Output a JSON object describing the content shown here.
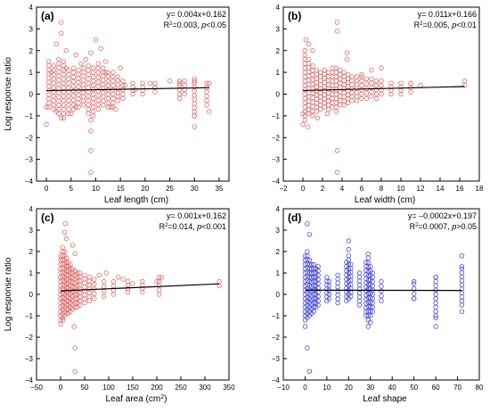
{
  "figure": {
    "panels": [
      "a",
      "b",
      "c",
      "d"
    ]
  },
  "chart_data": [
    {
      "type": "scatter",
      "panel_label": "(a)",
      "xlabel": "Leaf  length (cm)",
      "ylabel": "Log response ratio",
      "xlim": [
        -2,
        37
      ],
      "ylim": [
        -4,
        4
      ],
      "xticks": [
        0,
        5,
        10,
        15,
        20,
        25,
        30,
        35
      ],
      "yticks": [
        -4,
        -3,
        -2,
        -1,
        0,
        1,
        2,
        3,
        4
      ],
      "marker_color": "#e06b6b",
      "equation": "y= 0.004x+0.162",
      "r2_value": "=0.003, ",
      "p_text": "<0.05",
      "fit": {
        "slope": 0.004,
        "intercept": 0.162,
        "x": [
          0,
          33
        ]
      },
      "points": [
        [
          3,
          3.3
        ],
        [
          3,
          2.8
        ],
        [
          2,
          2.3
        ],
        [
          4,
          2.0
        ],
        [
          10,
          2.5
        ],
        [
          9,
          1.9
        ],
        [
          11,
          2.1
        ],
        [
          12,
          1.5
        ],
        [
          15,
          1.2
        ],
        [
          6,
          1.8
        ],
        [
          7,
          1.4
        ],
        [
          8,
          1.6
        ],
        [
          9,
          -1.2
        ],
        [
          9,
          -1.7
        ],
        [
          9,
          -2.6
        ],
        [
          9,
          -3.6
        ],
        [
          0,
          -1.4
        ],
        [
          0,
          -0.6
        ],
        [
          2,
          -0.8
        ],
        [
          3,
          -1.1
        ],
        [
          5,
          -0.9
        ],
        [
          6,
          -0.6
        ],
        [
          13,
          -0.6
        ],
        [
          14,
          -0.7
        ],
        [
          30,
          -1.5
        ],
        [
          30,
          -1.0
        ],
        [
          33,
          -0.8
        ],
        [
          30,
          0.6
        ],
        [
          27,
          0.5
        ],
        [
          33,
          0.5
        ],
        [
          21,
          0.5
        ],
        [
          22,
          0.3
        ],
        [
          25,
          0.6
        ],
        [
          1,
          1.0
        ],
        [
          4,
          1.2
        ],
        [
          12,
          1.0
        ],
        [
          16,
          0.4
        ],
        [
          18,
          0.2
        ]
      ],
      "column_points": [
        {
          "x": 0.5,
          "min": -0.6,
          "max": 1.5
        },
        {
          "x": 1.5,
          "min": -0.7,
          "max": 1.3
        },
        {
          "x": 2.5,
          "min": -0.9,
          "max": 1.6
        },
        {
          "x": 3.5,
          "min": -1.1,
          "max": 1.5
        },
        {
          "x": 4.5,
          "min": -0.9,
          "max": 1.1
        },
        {
          "x": 5.5,
          "min": -0.7,
          "max": 1.2
        },
        {
          "x": 6.5,
          "min": -0.6,
          "max": 1.1
        },
        {
          "x": 7.5,
          "min": -0.5,
          "max": 1.2
        },
        {
          "x": 8.5,
          "min": -0.9,
          "max": 1.3
        },
        {
          "x": 9.5,
          "min": -1.0,
          "max": 1.2
        },
        {
          "x": 10.5,
          "min": -0.7,
          "max": 1.4
        },
        {
          "x": 11.5,
          "min": -0.5,
          "max": 1.2
        },
        {
          "x": 12.5,
          "min": -0.6,
          "max": 1.0
        },
        {
          "x": 13.5,
          "min": -0.6,
          "max": 1.0
        },
        {
          "x": 14.5,
          "min": -0.3,
          "max": 0.8
        },
        {
          "x": 15.5,
          "min": -0.2,
          "max": 0.6
        },
        {
          "x": 17.5,
          "min": 0.0,
          "max": 0.5
        },
        {
          "x": 19.5,
          "min": 0.0,
          "max": 0.5
        },
        {
          "x": 22.0,
          "min": 0.1,
          "max": 0.5
        },
        {
          "x": 27.0,
          "min": -0.2,
          "max": 0.6
        },
        {
          "x": 28.0,
          "min": 0.0,
          "max": 0.6
        },
        {
          "x": 30.0,
          "min": -1.0,
          "max": 0.7
        },
        {
          "x": 32.5,
          "min": -0.5,
          "max": 0.5
        }
      ]
    },
    {
      "type": "scatter",
      "panel_label": "(b)",
      "xlabel": "Leaf width (cm)",
      "ylabel": "",
      "xlim": [
        -2,
        18
      ],
      "ylim": [
        -4,
        4
      ],
      "xticks": [
        -2,
        0,
        2,
        4,
        6,
        8,
        10,
        12,
        14,
        16,
        18
      ],
      "yticks": [
        -4,
        -3,
        -2,
        -1,
        0,
        1,
        2,
        3,
        4
      ],
      "marker_color": "#e06b6b",
      "equation": "y= 0.011x+0.166",
      "r2_value": "=0.005, ",
      "p_text": "<0.01",
      "fit": {
        "slope": 0.011,
        "intercept": 0.166,
        "x": [
          0,
          16.5
        ]
      },
      "points": [
        [
          3.5,
          3.3
        ],
        [
          3.5,
          2.9
        ],
        [
          4.5,
          1.9
        ],
        [
          4.5,
          1.6
        ],
        [
          0.3,
          2.5
        ],
        [
          0.6,
          2.3
        ],
        [
          1.0,
          2.0
        ],
        [
          0,
          -1.4
        ],
        [
          0,
          -0.9
        ],
        [
          0.5,
          -1.5
        ],
        [
          3.5,
          -2.6
        ],
        [
          3.5,
          -3.6
        ],
        [
          1.5,
          -1.1
        ],
        [
          2.5,
          -0.9
        ],
        [
          16.5,
          0.6
        ],
        [
          16.5,
          0.4
        ],
        [
          12,
          0.4
        ],
        [
          11,
          0.5
        ],
        [
          8,
          1.2
        ],
        [
          7,
          1.1
        ],
        [
          6,
          0.9
        ]
      ],
      "column_points": [
        {
          "x": 0.2,
          "min": -1.2,
          "max": 2.0
        },
        {
          "x": 0.6,
          "min": -0.9,
          "max": 1.6
        },
        {
          "x": 1.0,
          "min": -1.0,
          "max": 1.3
        },
        {
          "x": 1.4,
          "min": -0.8,
          "max": 1.1
        },
        {
          "x": 1.8,
          "min": -0.7,
          "max": 1.0
        },
        {
          "x": 2.2,
          "min": -0.6,
          "max": 1.1
        },
        {
          "x": 2.6,
          "min": -0.7,
          "max": 1.0
        },
        {
          "x": 3.0,
          "min": -0.6,
          "max": 1.2
        },
        {
          "x": 3.4,
          "min": -0.8,
          "max": 1.2
        },
        {
          "x": 3.8,
          "min": -0.5,
          "max": 1.1
        },
        {
          "x": 4.2,
          "min": -0.5,
          "max": 1.0
        },
        {
          "x": 4.6,
          "min": -0.4,
          "max": 0.9
        },
        {
          "x": 5.0,
          "min": -0.3,
          "max": 0.8
        },
        {
          "x": 5.5,
          "min": -0.3,
          "max": 0.8
        },
        {
          "x": 6.0,
          "min": -0.2,
          "max": 0.8
        },
        {
          "x": 6.5,
          "min": -0.2,
          "max": 0.7
        },
        {
          "x": 7.0,
          "min": -0.1,
          "max": 0.7
        },
        {
          "x": 7.5,
          "min": -0.2,
          "max": 0.6
        },
        {
          "x": 8.0,
          "min": 0.0,
          "max": 0.6
        },
        {
          "x": 9.0,
          "min": 0.0,
          "max": 0.5
        },
        {
          "x": 10.0,
          "min": 0.0,
          "max": 0.5
        },
        {
          "x": 11.0,
          "min": 0.1,
          "max": 0.5
        }
      ]
    },
    {
      "type": "scatter",
      "panel_label": "(c)",
      "xlabel": "Leaf area (cm",
      "xlabel_sup": "2",
      "xlabel_tail": ")",
      "ylabel": "Log response ratio",
      "xlim": [
        -50,
        350
      ],
      "ylim": [
        -4,
        4
      ],
      "xticks": [
        -50,
        0,
        50,
        100,
        150,
        200,
        250,
        300,
        350
      ],
      "yticks": [
        -4,
        -3,
        -2,
        -1,
        0,
        1,
        2,
        3,
        4
      ],
      "marker_color": "#e06b6b",
      "equation": "y= 0.001x+0.162",
      "r2_value": "=0.014, ",
      "p_text": "<0.001",
      "fit": {
        "slope": 0.001,
        "intercept": 0.162,
        "x": [
          0,
          330
        ]
      },
      "points": [
        [
          10,
          3.3
        ],
        [
          8,
          2.9
        ],
        [
          12,
          2.6
        ],
        [
          25,
          2.3
        ],
        [
          30,
          1.9
        ],
        [
          28,
          -1.5
        ],
        [
          30,
          -2.5
        ],
        [
          30,
          -3.6
        ],
        [
          0,
          -1.4
        ],
        [
          5,
          -1.2
        ],
        [
          330,
          0.6
        ],
        [
          330,
          0.4
        ],
        [
          210,
          0.8
        ],
        [
          200,
          0.6
        ],
        [
          150,
          0.5
        ],
        [
          130,
          0.7
        ],
        [
          120,
          0.8
        ],
        [
          95,
          1.0
        ],
        [
          80,
          0.9
        ]
      ],
      "column_points": [
        {
          "x": 0,
          "min": -1.2,
          "max": 1.8
        },
        {
          "x": 4,
          "min": -1.1,
          "max": 2.2
        },
        {
          "x": 8,
          "min": -1.0,
          "max": 2.0
        },
        {
          "x": 12,
          "min": -0.9,
          "max": 1.7
        },
        {
          "x": 16,
          "min": -0.9,
          "max": 1.5
        },
        {
          "x": 20,
          "min": -0.8,
          "max": 1.4
        },
        {
          "x": 25,
          "min": -0.7,
          "max": 1.2
        },
        {
          "x": 30,
          "min": -0.6,
          "max": 1.1
        },
        {
          "x": 35,
          "min": -0.6,
          "max": 1.0
        },
        {
          "x": 40,
          "min": -0.5,
          "max": 1.0
        },
        {
          "x": 50,
          "min": -0.4,
          "max": 0.9
        },
        {
          "x": 60,
          "min": -0.3,
          "max": 0.8
        },
        {
          "x": 70,
          "min": -0.2,
          "max": 0.7
        },
        {
          "x": 90,
          "min": -0.1,
          "max": 0.6
        },
        {
          "x": 110,
          "min": 0.0,
          "max": 0.6
        },
        {
          "x": 140,
          "min": 0.1,
          "max": 0.6
        },
        {
          "x": 170,
          "min": 0.1,
          "max": 0.6
        },
        {
          "x": 205,
          "min": 0.0,
          "max": 0.8
        }
      ]
    },
    {
      "type": "scatter",
      "panel_label": "(d)",
      "xlabel": "Leaf shape",
      "ylabel": "",
      "xlim": [
        -10,
        80
      ],
      "ylim": [
        -4,
        4
      ],
      "xticks": [
        -10,
        0,
        10,
        20,
        30,
        40,
        50,
        60,
        70,
        80
      ],
      "yticks": [
        -4,
        -3,
        -2,
        -1,
        0,
        1,
        2,
        3,
        4
      ],
      "marker_color": "#4a4ad8",
      "equation": "y= –0.0002x+0.197",
      "r2_value": "=0.0007, ",
      "p_text": ">0.05",
      "fit": {
        "slope": -0.0002,
        "intercept": 0.197,
        "x": [
          0,
          72
        ]
      },
      "points": [
        [
          1,
          3.3
        ],
        [
          2,
          2.8
        ],
        [
          0,
          -1.5
        ],
        [
          1,
          -2.5
        ],
        [
          2,
          -3.6
        ],
        [
          20,
          2.5
        ],
        [
          20,
          2.1
        ],
        [
          29,
          1.9
        ],
        [
          29,
          -1.5
        ],
        [
          30,
          -1.3
        ],
        [
          60,
          -1.5
        ],
        [
          60,
          -1.1
        ],
        [
          60,
          0.8
        ],
        [
          72,
          1.8
        ],
        [
          72,
          1.3
        ],
        [
          72,
          -0.8
        ],
        [
          50,
          0.6
        ],
        [
          50,
          -0.2
        ]
      ],
      "column_points": [
        {
          "x": 0,
          "min": -1.2,
          "max": 1.8
        },
        {
          "x": 1,
          "min": -1.1,
          "max": 2.0
        },
        {
          "x": 2,
          "min": -1.0,
          "max": 1.6
        },
        {
          "x": 3,
          "min": -0.9,
          "max": 1.4
        },
        {
          "x": 4,
          "min": -0.8,
          "max": 1.4
        },
        {
          "x": 5,
          "min": -0.6,
          "max": 1.2
        },
        {
          "x": 6,
          "min": -0.5,
          "max": 1.3
        },
        {
          "x": 10,
          "min": -0.3,
          "max": 0.8
        },
        {
          "x": 11,
          "min": -0.2,
          "max": 0.6
        },
        {
          "x": 15,
          "min": -0.4,
          "max": 0.9
        },
        {
          "x": 19,
          "min": -0.3,
          "max": 1.5
        },
        {
          "x": 20,
          "min": -0.2,
          "max": 1.8
        },
        {
          "x": 21,
          "min": -0.1,
          "max": 1.4
        },
        {
          "x": 25,
          "min": -0.5,
          "max": 1.0
        },
        {
          "x": 28,
          "min": -1.0,
          "max": 1.5
        },
        {
          "x": 29,
          "min": -1.2,
          "max": 1.7
        },
        {
          "x": 30,
          "min": -1.0,
          "max": 1.3
        },
        {
          "x": 31,
          "min": -0.8,
          "max": 1.0
        },
        {
          "x": 35,
          "min": -0.3,
          "max": 0.6
        },
        {
          "x": 50,
          "min": -0.2,
          "max": 0.5
        },
        {
          "x": 60,
          "min": -1.0,
          "max": 0.8
        },
        {
          "x": 72,
          "min": -0.5,
          "max": 1.2
        }
      ]
    }
  ]
}
